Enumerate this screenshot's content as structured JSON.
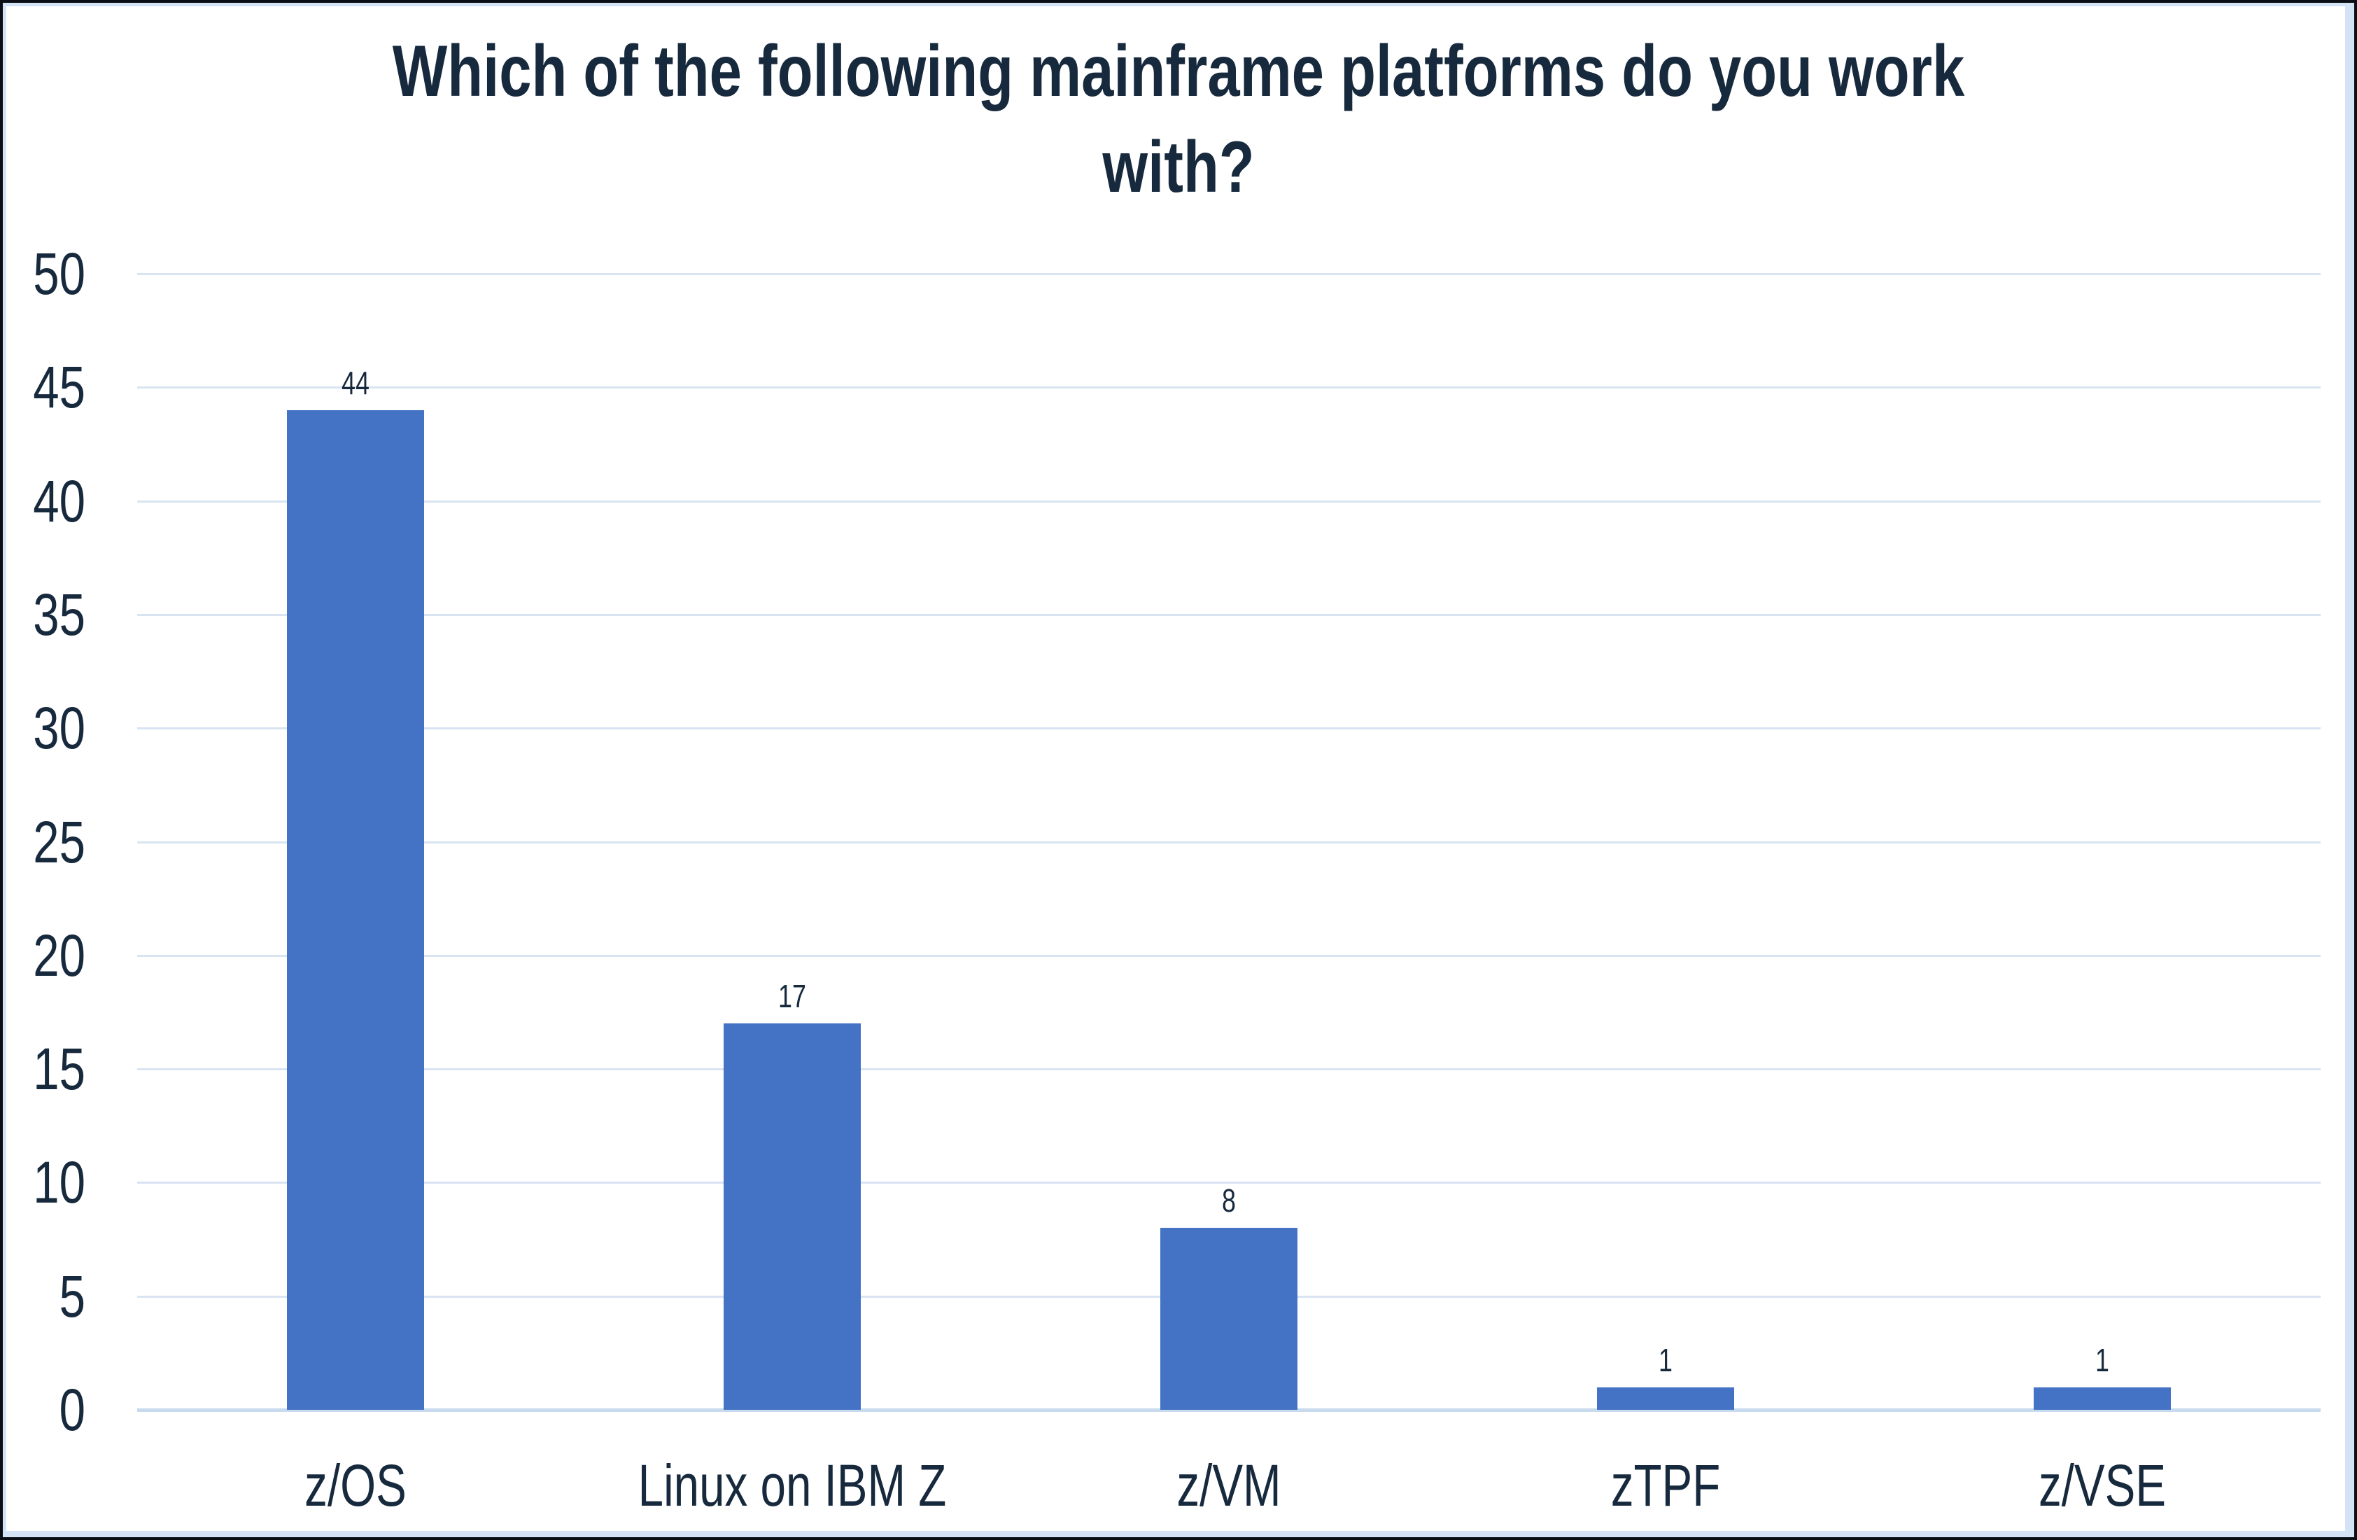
{
  "chart_data": {
    "type": "bar",
    "title": "Which of the following mainframe platforms do you work with?",
    "title_line1": "Which of the following mainframe platforms do you work",
    "title_line2": "with?",
    "categories": [
      "z/OS",
      "Linux on IBM Z",
      "z/VM",
      "zTPF",
      "z/VSE"
    ],
    "values": [
      44,
      17,
      8,
      1,
      1
    ],
    "xlabel": "",
    "ylabel": "",
    "ylim": [
      0,
      50
    ],
    "ytick_step": 5,
    "yticks": [
      0,
      5,
      10,
      15,
      20,
      25,
      30,
      35,
      40,
      45,
      50
    ],
    "grid": "on",
    "legend_position": "none",
    "colors": {
      "bar_fill": "#4472C4",
      "text_navy": "#17293D",
      "gridline": "#D9E4F3",
      "axis_line": "#C8DAEE",
      "frame_blue": "#D3E2F4",
      "outer_border": "#0B0F15",
      "background": "#FFFFFF"
    }
  }
}
